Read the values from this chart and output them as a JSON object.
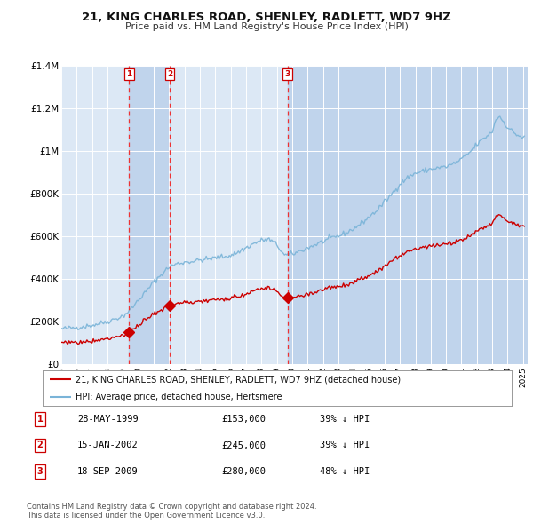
{
  "title": "21, KING CHARLES ROAD, SHENLEY, RADLETT, WD7 9HZ",
  "subtitle": "Price paid vs. HM Land Registry's House Price Index (HPI)",
  "transactions": [
    {
      "num": 1,
      "date": "28-MAY-1999",
      "date_val": 1999.41,
      "price": 153000,
      "pct": "39%"
    },
    {
      "num": 2,
      "date": "15-JAN-2002",
      "date_val": 2002.04,
      "price": 245000,
      "pct": "39%"
    },
    {
      "num": 3,
      "date": "18-SEP-2009",
      "date_val": 2009.71,
      "price": 280000,
      "pct": "48%"
    }
  ],
  "legend_line1": "21, KING CHARLES ROAD, SHENLEY, RADLETT, WD7 9HZ (detached house)",
  "legend_line2": "HPI: Average price, detached house, Hertsmere",
  "footnote": "Contains HM Land Registry data © Crown copyright and database right 2024.\nThis data is licensed under the Open Government Licence v3.0.",
  "hpi_color": "#7ab4d8",
  "price_color": "#cc0000",
  "marker_color": "#cc0000",
  "bg_color": "#dce8f5",
  "grid_color": "#ffffff",
  "shade_color": "#c0d4ec",
  "dashed_color": "#ee3333",
  "ylim": [
    0,
    1400000
  ],
  "xlim_start": 1995.0,
  "xlim_end": 2025.3,
  "hpi_anchors_x": [
    1995.0,
    1996.0,
    1997.0,
    1998.0,
    1999.0,
    1999.5,
    2000.0,
    2000.5,
    2001.0,
    2001.5,
    2002.0,
    2002.5,
    2003.0,
    2003.5,
    2004.0,
    2004.5,
    2005.0,
    2005.5,
    2006.0,
    2006.5,
    2007.0,
    2007.5,
    2008.0,
    2008.5,
    2009.0,
    2009.5,
    2010.0,
    2010.5,
    2011.0,
    2011.5,
    2012.0,
    2012.5,
    2013.0,
    2013.5,
    2014.0,
    2014.5,
    2015.0,
    2015.5,
    2016.0,
    2016.5,
    2017.0,
    2017.5,
    2018.0,
    2018.5,
    2019.0,
    2019.5,
    2020.0,
    2020.5,
    2021.0,
    2021.5,
    2022.0,
    2022.5,
    2023.0,
    2023.25,
    2023.5,
    2024.0,
    2024.5,
    2025.0
  ],
  "hpi_anchors_y": [
    165000,
    172000,
    182000,
    200000,
    225000,
    255000,
    300000,
    340000,
    385000,
    420000,
    455000,
    470000,
    478000,
    482000,
    488000,
    492000,
    498000,
    503000,
    510000,
    525000,
    545000,
    565000,
    580000,
    585000,
    560000,
    510000,
    515000,
    530000,
    545000,
    560000,
    575000,
    590000,
    600000,
    615000,
    635000,
    660000,
    690000,
    720000,
    760000,
    800000,
    845000,
    875000,
    895000,
    905000,
    915000,
    920000,
    925000,
    940000,
    960000,
    990000,
    1030000,
    1060000,
    1090000,
    1150000,
    1160000,
    1110000,
    1080000,
    1060000
  ],
  "price_scale": 0.583
}
